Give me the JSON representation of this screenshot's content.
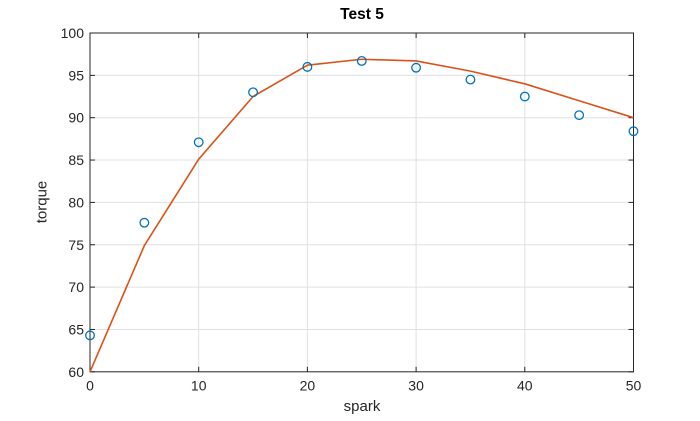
{
  "chart_data": {
    "type": "line+scatter",
    "title": "Test 5",
    "xlabel": "spark",
    "ylabel": "torque",
    "xlim": [
      0,
      50
    ],
    "ylim": [
      60,
      100
    ],
    "xticks": [
      0,
      10,
      20,
      30,
      40,
      50
    ],
    "yticks": [
      60,
      65,
      70,
      75,
      80,
      85,
      90,
      95,
      100
    ],
    "grid": true,
    "legend": "none",
    "colors": {
      "marker": "#0072BD",
      "line": "#D95319",
      "axis": "#262626",
      "grid": "#e0e0e0",
      "background": "#ffffff"
    },
    "series": [
      {
        "name": "fitted-curve",
        "type": "line",
        "color": "#D95319",
        "x": [
          0,
          5,
          10,
          15,
          20,
          25,
          30,
          35,
          40,
          45,
          50
        ],
        "y": [
          60.0,
          74.9,
          85.1,
          92.5,
          96.2,
          96.9,
          96.7,
          95.5,
          94.0,
          92.0,
          90.0
        ]
      },
      {
        "name": "data-points",
        "type": "scatter",
        "marker": "circle",
        "color": "#0072BD",
        "x": [
          0,
          5,
          10,
          15,
          20,
          25,
          30,
          35,
          40,
          45,
          50
        ],
        "y": [
          64.3,
          77.6,
          87.1,
          93.0,
          96.0,
          96.7,
          95.9,
          94.5,
          92.5,
          90.3,
          88.4
        ]
      }
    ]
  }
}
